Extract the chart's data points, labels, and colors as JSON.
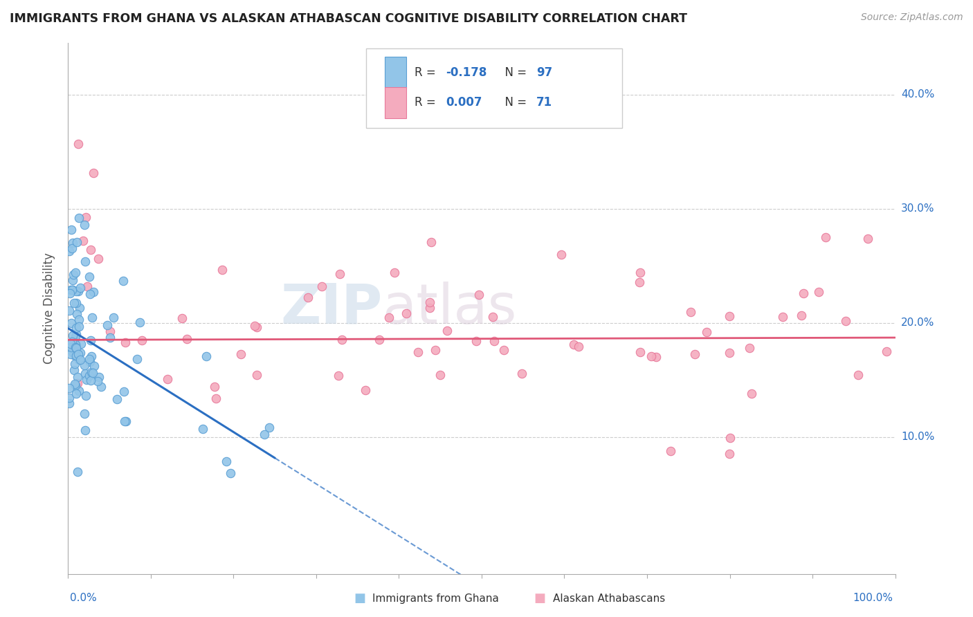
{
  "title": "IMMIGRANTS FROM GHANA VS ALASKAN ATHABASCAN COGNITIVE DISABILITY CORRELATION CHART",
  "source": "Source: ZipAtlas.com",
  "ylabel": "Cognitive Disability",
  "ytick_labels": [
    "10.0%",
    "20.0%",
    "30.0%",
    "40.0%"
  ],
  "ytick_values": [
    0.1,
    0.2,
    0.3,
    0.4
  ],
  "xlim": [
    0.0,
    1.0
  ],
  "ylim": [
    -0.02,
    0.445
  ],
  "legend_label1": "R = -0.178   N = 97",
  "legend_label2": "R = 0.007   N = 71",
  "legend_bottom_label1": "Immigrants from Ghana",
  "legend_bottom_label2": "Alaskan Athabascans",
  "blue_color": "#92C5E8",
  "pink_color": "#F4ABBE",
  "blue_edge_color": "#5A9FD4",
  "pink_edge_color": "#E8789A",
  "blue_line_color": "#2B6FC2",
  "pink_line_color": "#E05878",
  "watermark_color": "#D8E8F0",
  "watermark_pink": "#F0D0DC",
  "ghana_R": -0.178,
  "ghana_N": 97,
  "athabascan_R": 0.007,
  "athabascan_N": 71
}
